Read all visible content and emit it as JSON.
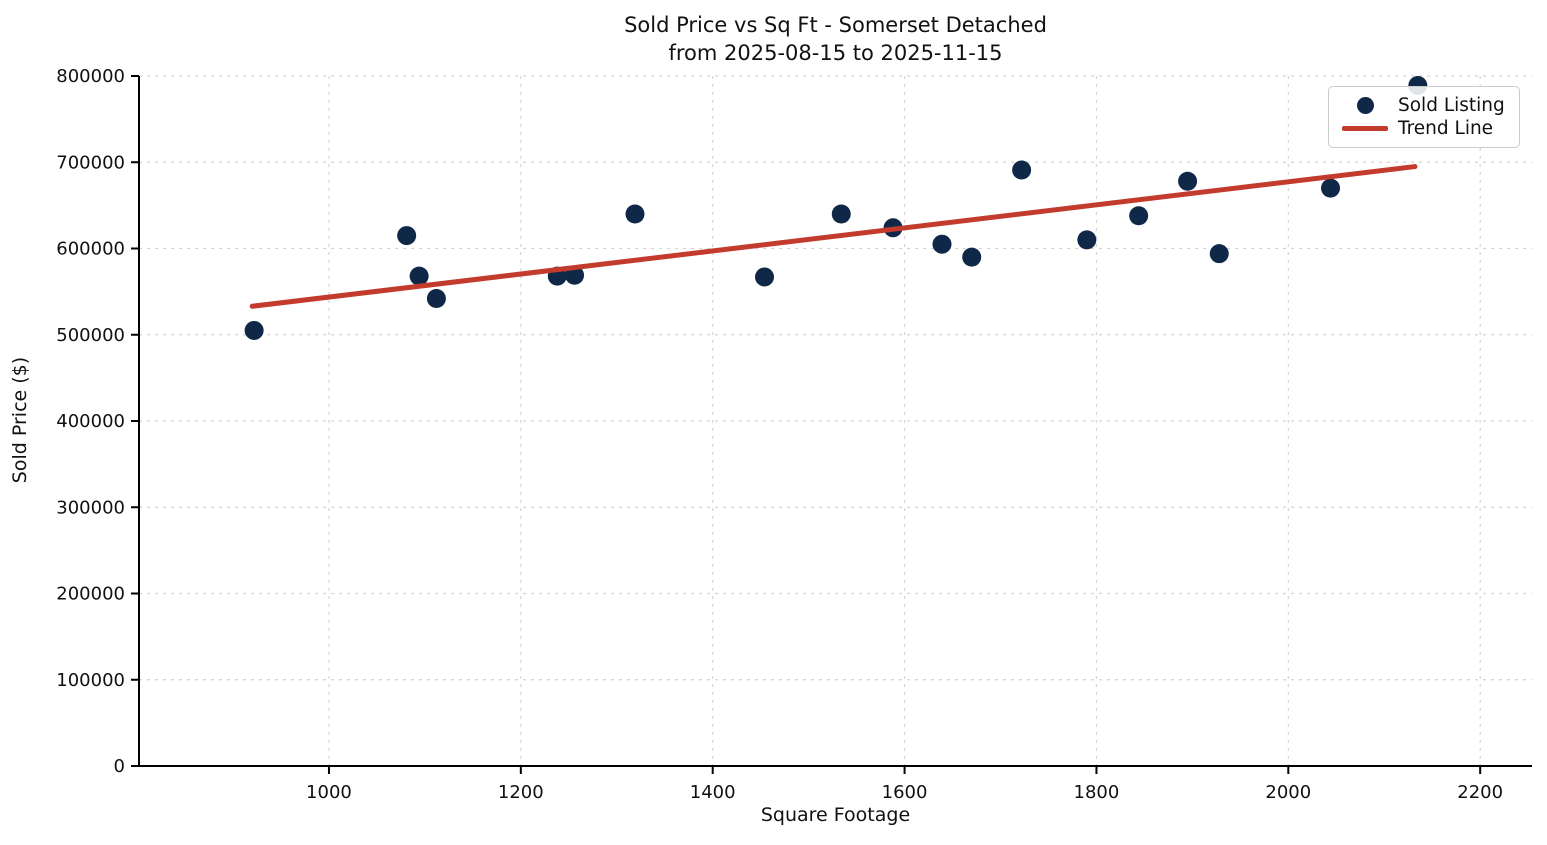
{
  "chart_data": {
    "type": "scatter",
    "title": "Sold Price vs Sq Ft - Somerset Detached",
    "subtitle": "from 2025-08-15 to 2025-11-15",
    "xlabel": "Square Footage",
    "ylabel": "Sold Price ($)",
    "xlim": [
      802,
      2254
    ],
    "ylim": [
      0,
      800000
    ],
    "x_ticks": [
      1000,
      1200,
      1400,
      1600,
      1800,
      2000,
      2200
    ],
    "y_ticks": [
      0,
      100000,
      200000,
      300000,
      400000,
      500000,
      600000,
      700000,
      800000
    ],
    "grid": true,
    "legend_position": "upper-right",
    "series": [
      {
        "name": "Sold Listing",
        "kind": "scatter",
        "color": "#0f2847",
        "points": [
          [
            922,
            505000
          ],
          [
            1081,
            615000
          ],
          [
            1094,
            568000
          ],
          [
            1112,
            542000
          ],
          [
            1238,
            568000
          ],
          [
            1256,
            569000
          ],
          [
            1319,
            640000
          ],
          [
            1454,
            567000
          ],
          [
            1534,
            640000
          ],
          [
            1588,
            624000
          ],
          [
            1639,
            605000
          ],
          [
            1670,
            590000
          ],
          [
            1722,
            691000
          ],
          [
            1790,
            610000
          ],
          [
            1844,
            638000
          ],
          [
            1895,
            678000
          ],
          [
            1928,
            594000
          ],
          [
            2044,
            670000
          ],
          [
            2135,
            789000
          ]
        ]
      },
      {
        "name": "Trend Line",
        "kind": "line",
        "color": "#c23b2d",
        "points": [
          [
            920,
            533000
          ],
          [
            2132,
            695000
          ]
        ]
      }
    ]
  }
}
